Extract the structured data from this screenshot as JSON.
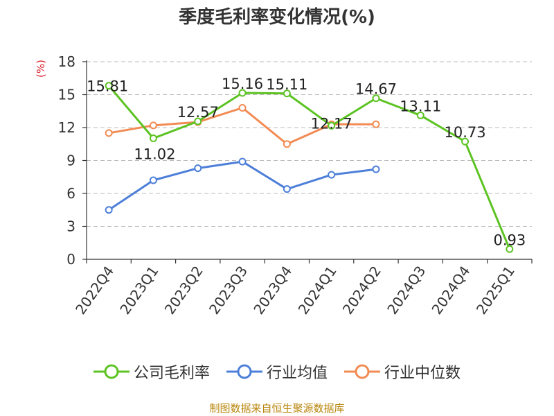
{
  "chart_data": {
    "type": "line",
    "title": "季度毛利率变化情况(%)",
    "ylabel": "(%)",
    "xlabel": "",
    "categories": [
      "2022Q4",
      "2023Q1",
      "2023Q2",
      "2023Q3",
      "2023Q4",
      "2024Q1",
      "2024Q2",
      "2024Q3",
      "2024Q4",
      "2025Q1"
    ],
    "ylim": [
      0,
      18
    ],
    "yticks": [
      0,
      3,
      6,
      9,
      12,
      15,
      18
    ],
    "grid": true,
    "legend_position": "bottom",
    "series": [
      {
        "name": "公司毛利率",
        "color": "#5cc323",
        "labeled": true,
        "values": [
          15.81,
          11.02,
          12.57,
          15.16,
          15.11,
          12.17,
          14.67,
          13.11,
          10.73,
          0.93
        ]
      },
      {
        "name": "行业均值",
        "color": "#4d7fd9",
        "labeled": false,
        "values": [
          4.5,
          7.2,
          8.3,
          8.9,
          6.4,
          7.7,
          8.2,
          null,
          null,
          null
        ]
      },
      {
        "name": "行业中位数",
        "color": "#f28b53",
        "labeled": false,
        "values": [
          11.5,
          12.2,
          12.5,
          13.8,
          10.5,
          12.3,
          12.3,
          null,
          null,
          null
        ]
      }
    ]
  },
  "source": "制图数据来自恒生聚源数据库"
}
